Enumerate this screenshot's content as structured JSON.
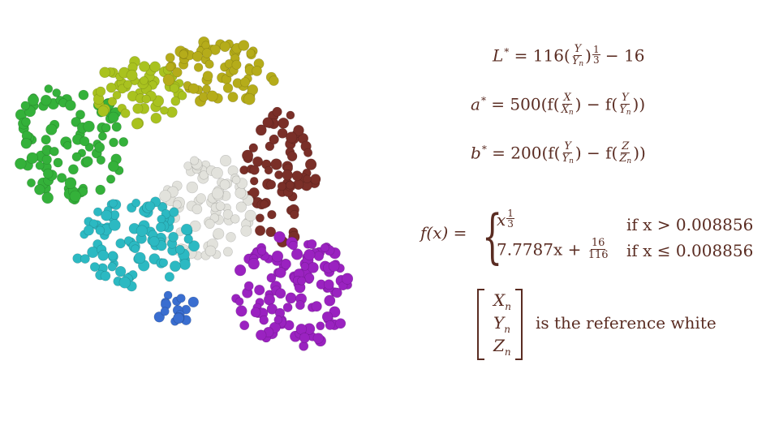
{
  "equations": {
    "L": {
      "lhs": "L",
      "star": "*",
      "eq": " = 116(",
      "frac_num": "Y",
      "frac_den": "Y",
      "frac_den_sub": "n",
      "close": ")",
      "exp_num": "1",
      "exp_den": "3",
      "tail": " − 16"
    },
    "a": {
      "lhs": "a",
      "star": "*",
      "eq": " = 500(f(",
      "f1_num": "X",
      "f1_den": "X",
      "f1_den_sub": "n",
      "mid": ") − f(",
      "f2_num": "Y",
      "f2_den": "Y",
      "f2_den_sub": "n",
      "close": "))"
    },
    "b": {
      "lhs": "b",
      "star": "*",
      "eq": " = 200(f(",
      "f1_num": "Y",
      "f1_den": "Y",
      "f1_den_sub": "n",
      "mid": ") − f(",
      "f2_num": "Z",
      "f2_den": "Z",
      "f2_den_sub": "n",
      "close": "))"
    },
    "f": {
      "lhs": "f(x) =",
      "case1_base": "x",
      "case1_exp_num": "1",
      "case1_exp_den": "3",
      "case1_cond": "if x > 0.008856",
      "case2_lead": "7.7787x + ",
      "case2_num": "16",
      "case2_den": "116",
      "case2_cond": "if x ≤ 0.008856"
    }
  },
  "reference": {
    "x": "X",
    "y": "Y",
    "z": "Z",
    "sub": "n",
    "text": "is the reference white"
  },
  "colors": {
    "text": "#5a2c22",
    "green": "#34b13a",
    "yellowgreen": "#a9c21f",
    "olive": "#b5ac1a",
    "brown": "#7a2f28",
    "white": "#e2e2dc",
    "cyan": "#2cb9c2",
    "purple": "#9a22c0",
    "blue": "#3a6ed0"
  }
}
